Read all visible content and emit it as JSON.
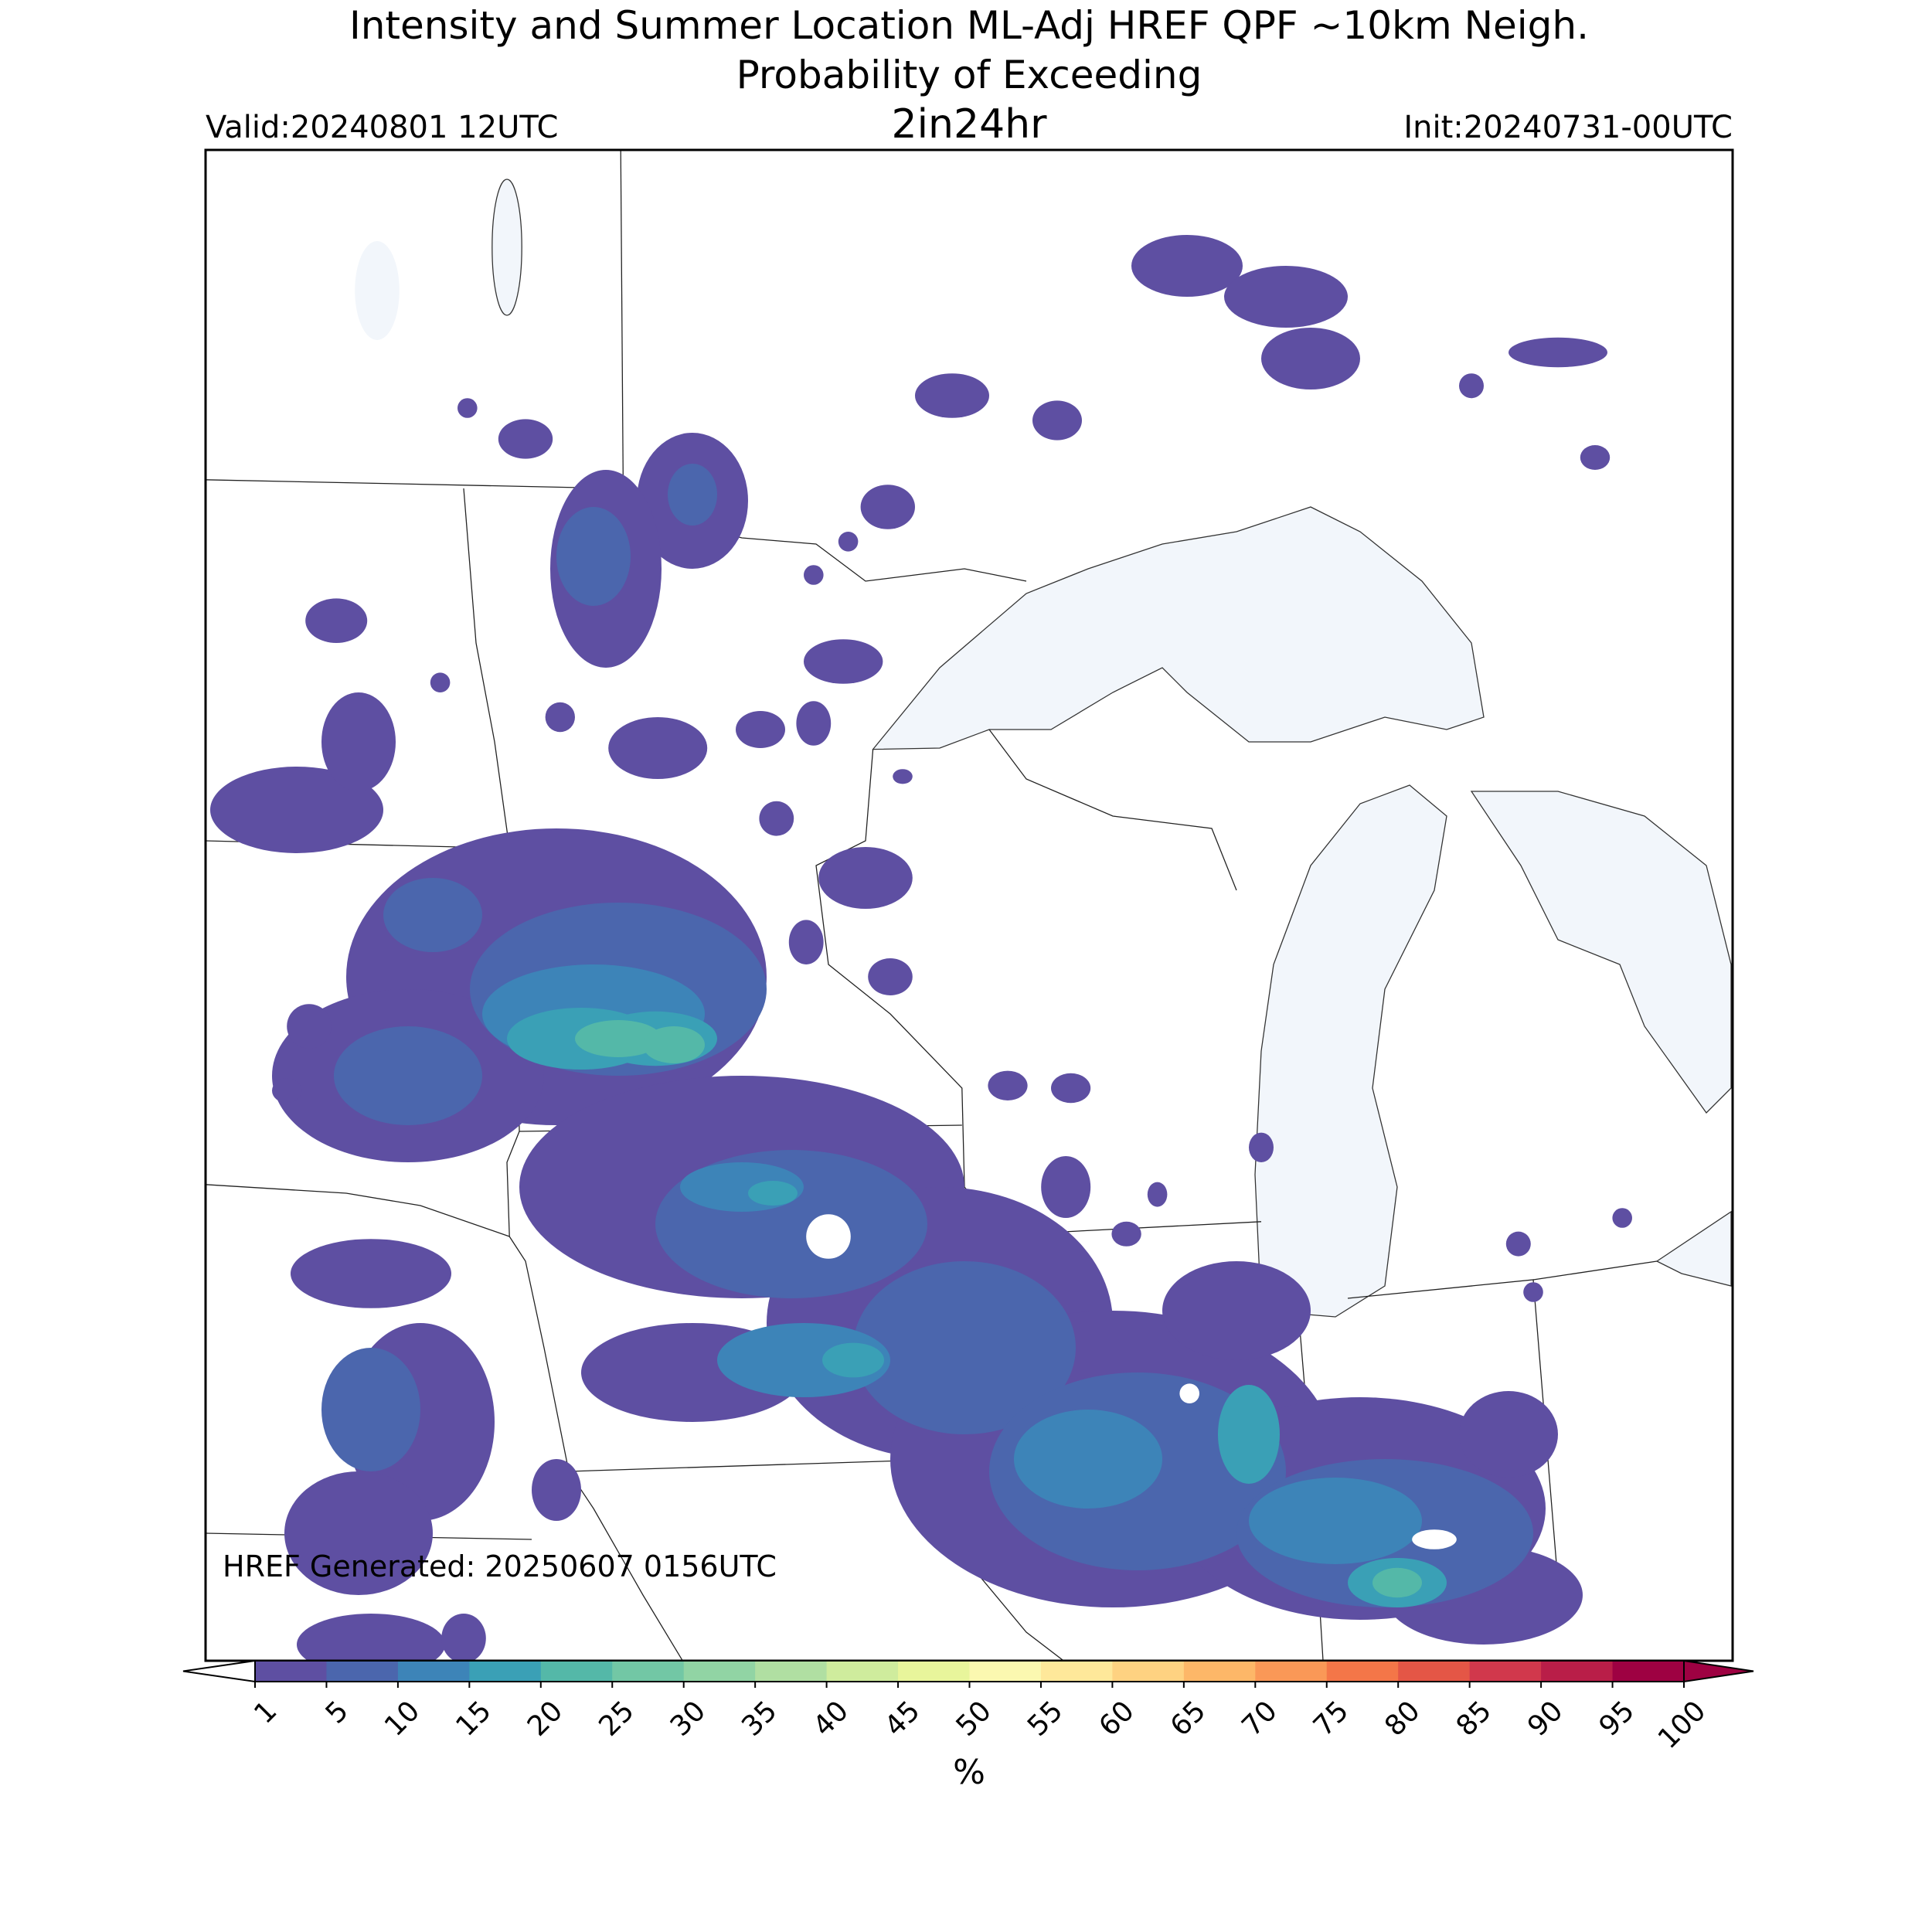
{
  "header": {
    "title_line1": "Intensity and Summer Location ML-Adj HREF QPF ~10km Neigh.",
    "title_line2": "Probability of Exceeding",
    "threshold": "2in24hr",
    "valid": "Valid:20240801 12UTC",
    "init": "Init:20240731-00UTC"
  },
  "map": {
    "generated": "HREF Generated: 20250607 0156UTC"
  },
  "colorbar": {
    "label": "%",
    "ticks": [
      1,
      5,
      10,
      15,
      20,
      25,
      30,
      35,
      40,
      45,
      50,
      55,
      60,
      65,
      70,
      75,
      80,
      85,
      90,
      95,
      100
    ],
    "colors": [
      "#5e4fa2",
      "#4b66ad",
      "#3d84b8",
      "#3aa0b6",
      "#54b8a8",
      "#72c7a5",
      "#91d4a4",
      "#b0dfa2",
      "#cfec9d",
      "#e8f59b",
      "#fbf8b0",
      "#fee89a",
      "#fed281",
      "#fdb768",
      "#fa9857",
      "#f47648",
      "#e45646",
      "#d1384c",
      "#b91e48",
      "#9e0142"
    ],
    "under_color": "#ffffff",
    "over_color": "#9e0142"
  }
}
